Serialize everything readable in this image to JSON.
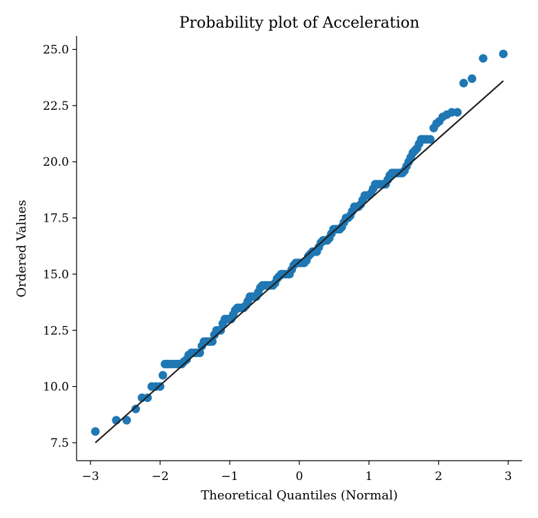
{
  "chart_data": {
    "type": "scatter",
    "title": "Probability plot of Acceleration",
    "xlabel": "Theoretical Quantiles (Normal)",
    "ylabel": "Ordered Values",
    "xlim": [
      -3.2,
      3.2
    ],
    "ylim": [
      6.7,
      25.6
    ],
    "x_ticks": [
      -3,
      -2,
      -1,
      0,
      1,
      2,
      3
    ],
    "x_tick_labels": [
      "−3",
      "−2",
      "−1",
      "0",
      "1",
      "2",
      "3"
    ],
    "y_ticks": [
      7.5,
      10.0,
      12.5,
      15.0,
      17.5,
      20.0,
      22.5,
      25.0
    ],
    "y_tick_labels": [
      "7.5",
      "10.0",
      "12.5",
      "15.0",
      "17.5",
      "20.0",
      "22.5",
      "25.0"
    ],
    "grid": false,
    "series": [
      {
        "name": "Ordered Values",
        "color": "#1f77b4",
        "points": [
          [
            -2.93,
            8.0
          ],
          [
            -2.63,
            8.5
          ],
          [
            -2.48,
            8.5
          ],
          [
            -2.35,
            9.0
          ],
          [
            -2.26,
            9.5
          ],
          [
            -2.18,
            9.5
          ],
          [
            -2.12,
            10.0
          ],
          [
            -2.06,
            10.0
          ],
          [
            -2.0,
            10.0
          ],
          [
            -1.96,
            10.5
          ],
          [
            -1.93,
            11.0
          ],
          [
            -1.89,
            11.0
          ],
          [
            -1.85,
            11.0
          ],
          [
            -1.81,
            11.0
          ],
          [
            -1.77,
            11.0
          ],
          [
            -1.73,
            11.0
          ],
          [
            -1.69,
            11.0
          ],
          [
            -1.66,
            11.1
          ],
          [
            -1.62,
            11.2
          ],
          [
            -1.59,
            11.4
          ],
          [
            -1.55,
            11.5
          ],
          [
            -1.51,
            11.5
          ],
          [
            -1.47,
            11.5
          ],
          [
            -1.43,
            11.5
          ],
          [
            -1.4,
            11.8
          ],
          [
            -1.37,
            12.0
          ],
          [
            -1.34,
            12.0
          ],
          [
            -1.31,
            12.0
          ],
          [
            -1.28,
            12.0
          ],
          [
            -1.25,
            12.0
          ],
          [
            -1.22,
            12.3
          ],
          [
            -1.19,
            12.5
          ],
          [
            -1.16,
            12.5
          ],
          [
            -1.13,
            12.5
          ],
          [
            -1.1,
            12.8
          ],
          [
            -1.07,
            13.0
          ],
          [
            -1.04,
            13.0
          ],
          [
            -1.01,
            13.0
          ],
          [
            -0.98,
            13.0
          ],
          [
            -0.95,
            13.2
          ],
          [
            -0.92,
            13.4
          ],
          [
            -0.89,
            13.5
          ],
          [
            -0.86,
            13.5
          ],
          [
            -0.83,
            13.5
          ],
          [
            -0.8,
            13.5
          ],
          [
            -0.77,
            13.6
          ],
          [
            -0.74,
            13.8
          ],
          [
            -0.71,
            14.0
          ],
          [
            -0.68,
            14.0
          ],
          [
            -0.65,
            14.0
          ],
          [
            -0.62,
            14.0
          ],
          [
            -0.59,
            14.2
          ],
          [
            -0.56,
            14.4
          ],
          [
            -0.53,
            14.5
          ],
          [
            -0.5,
            14.5
          ],
          [
            -0.47,
            14.5
          ],
          [
            -0.44,
            14.5
          ],
          [
            -0.41,
            14.5
          ],
          [
            -0.38,
            14.5
          ],
          [
            -0.35,
            14.6
          ],
          [
            -0.32,
            14.8
          ],
          [
            -0.29,
            14.9
          ],
          [
            -0.26,
            15.0
          ],
          [
            -0.23,
            15.0
          ],
          [
            -0.2,
            15.0
          ],
          [
            -0.17,
            15.0
          ],
          [
            -0.14,
            15.0
          ],
          [
            -0.11,
            15.2
          ],
          [
            -0.08,
            15.4
          ],
          [
            -0.05,
            15.5
          ],
          [
            -0.02,
            15.5
          ],
          [
            0.01,
            15.5
          ],
          [
            0.04,
            15.5
          ],
          [
            0.07,
            15.5
          ],
          [
            0.1,
            15.6
          ],
          [
            0.13,
            15.8
          ],
          [
            0.16,
            15.9
          ],
          [
            0.19,
            16.0
          ],
          [
            0.22,
            16.0
          ],
          [
            0.25,
            16.0
          ],
          [
            0.28,
            16.2
          ],
          [
            0.31,
            16.4
          ],
          [
            0.34,
            16.5
          ],
          [
            0.37,
            16.5
          ],
          [
            0.4,
            16.5
          ],
          [
            0.43,
            16.6
          ],
          [
            0.46,
            16.8
          ],
          [
            0.49,
            17.0
          ],
          [
            0.52,
            17.0
          ],
          [
            0.55,
            17.0
          ],
          [
            0.58,
            17.0
          ],
          [
            0.61,
            17.1
          ],
          [
            0.64,
            17.3
          ],
          [
            0.67,
            17.5
          ],
          [
            0.7,
            17.5
          ],
          [
            0.73,
            17.6
          ],
          [
            0.76,
            17.8
          ],
          [
            0.79,
            18.0
          ],
          [
            0.82,
            18.0
          ],
          [
            0.85,
            18.0
          ],
          [
            0.88,
            18.1
          ],
          [
            0.91,
            18.3
          ],
          [
            0.94,
            18.5
          ],
          [
            0.97,
            18.5
          ],
          [
            1.0,
            18.5
          ],
          [
            1.03,
            18.6
          ],
          [
            1.06,
            18.8
          ],
          [
            1.09,
            19.0
          ],
          [
            1.12,
            19.0
          ],
          [
            1.15,
            19.0
          ],
          [
            1.18,
            19.0
          ],
          [
            1.21,
            19.0
          ],
          [
            1.24,
            19.0
          ],
          [
            1.27,
            19.2
          ],
          [
            1.3,
            19.4
          ],
          [
            1.33,
            19.5
          ],
          [
            1.36,
            19.5
          ],
          [
            1.39,
            19.5
          ],
          [
            1.42,
            19.5
          ],
          [
            1.45,
            19.5
          ],
          [
            1.48,
            19.5
          ],
          [
            1.51,
            19.6
          ],
          [
            1.54,
            19.8
          ],
          [
            1.57,
            20.0
          ],
          [
            1.6,
            20.2
          ],
          [
            1.63,
            20.4
          ],
          [
            1.66,
            20.5
          ],
          [
            1.69,
            20.6
          ],
          [
            1.72,
            20.8
          ],
          [
            1.75,
            21.0
          ],
          [
            1.78,
            21.0
          ],
          [
            1.81,
            21.0
          ],
          [
            1.84,
            21.0
          ],
          [
            1.88,
            21.0
          ],
          [
            1.93,
            21.5
          ],
          [
            1.97,
            21.7
          ],
          [
            2.01,
            21.8
          ],
          [
            2.06,
            22.0
          ],
          [
            2.12,
            22.1
          ],
          [
            2.19,
            22.2
          ],
          [
            2.27,
            22.2
          ],
          [
            2.36,
            23.5
          ],
          [
            2.48,
            23.7
          ],
          [
            2.64,
            24.6
          ],
          [
            2.93,
            24.8
          ]
        ]
      }
    ],
    "fit_line": {
      "color": "#222222",
      "x": [
        -2.93,
        2.93
      ],
      "y": [
        7.5,
        23.6
      ]
    }
  }
}
